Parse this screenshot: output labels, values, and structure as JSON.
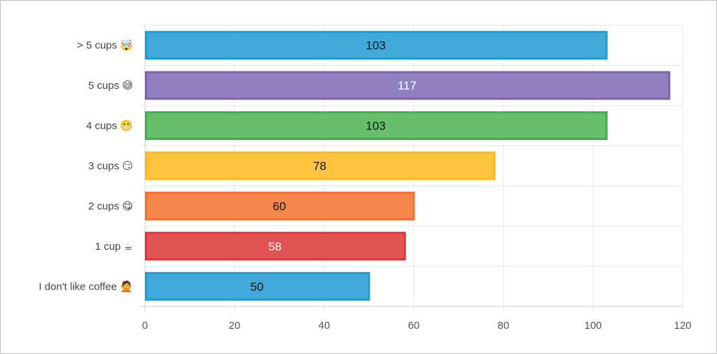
{
  "chart_data": {
    "type": "bar",
    "orientation": "horizontal",
    "categories": [
      "> 5 cups 🤯",
      "5 cups 😅",
      "4 cups 😬",
      "3 cups 😏",
      "2 cups 😋",
      "1 cup ☕",
      "I don't like coffee 🙅"
    ],
    "values": [
      103,
      117,
      103,
      78,
      60,
      58,
      50
    ],
    "value_labels": [
      "103",
      "117",
      "103",
      "78",
      "60",
      "58",
      "50"
    ],
    "bar_colors": [
      "#42a9db",
      "#9180c0",
      "#66bf6a",
      "#fec43f",
      "#f6874a",
      "#e25353",
      "#42a9db"
    ],
    "border_colors": [
      "#1d9bd4",
      "#7d62b3",
      "#44ac4a",
      "#fdb721",
      "#f47032",
      "#dc3535",
      "#1d9bd4"
    ],
    "label_colors": [
      "#111111",
      "#ffffff",
      "#111111",
      "#111111",
      "#111111",
      "#ffffff",
      "#111111"
    ],
    "xlim": [
      0,
      120
    ],
    "x_ticks": [
      "0",
      "20",
      "40",
      "60",
      "80",
      "100",
      "120"
    ],
    "grid": true,
    "legend": "none"
  }
}
